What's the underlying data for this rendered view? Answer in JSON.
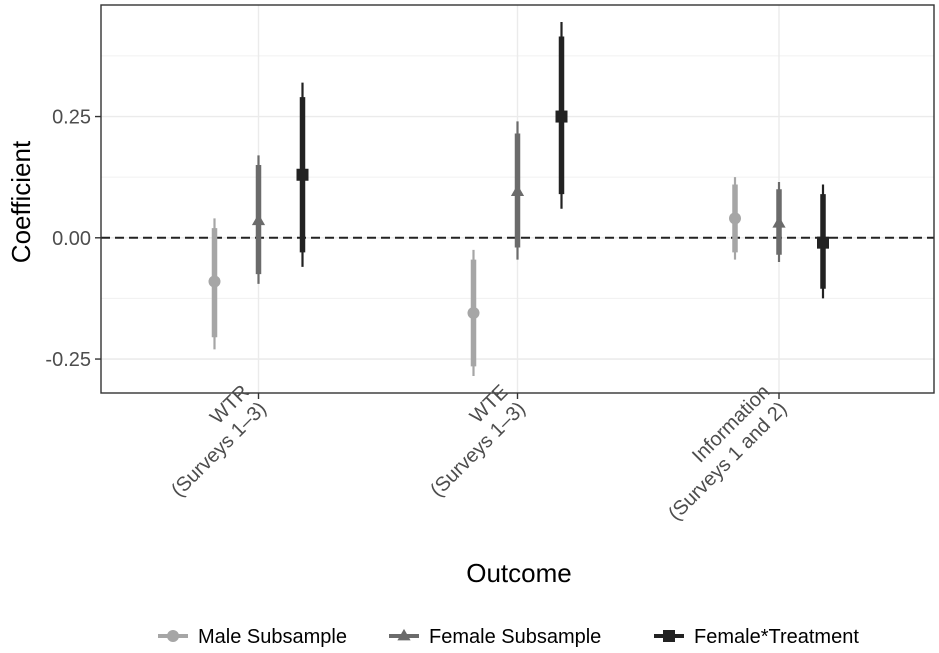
{
  "chart_data": {
    "type": "scatter",
    "subtype": "coefficient-plot",
    "xlabel": "Outcome",
    "ylabel": "Coefficient",
    "ylim": [
      -0.32,
      0.48
    ],
    "yticks": [
      -0.25,
      0.0,
      0.25
    ],
    "ytick_labels": [
      "-0.25",
      "0.00",
      "0.25"
    ],
    "categories": [
      [
        "WTR",
        "(Surveys 1–3)"
      ],
      [
        "WTE",
        "(Surveys 1–3)"
      ],
      [
        "Information",
        "(Surveys 1 and 2)"
      ]
    ],
    "reference_line": 0,
    "grid": true,
    "legend_position": "bottom",
    "series": [
      {
        "name": "Male Subsample",
        "marker": "circle",
        "color": "#a6a6a6",
        "values": [
          -0.09,
          -0.155,
          0.04
        ],
        "ci90": [
          [
            -0.205,
            0.02
          ],
          [
            -0.265,
            -0.045
          ],
          [
            -0.03,
            0.11
          ]
        ],
        "ci95": [
          [
            -0.23,
            0.04
          ],
          [
            -0.285,
            -0.025
          ],
          [
            -0.045,
            0.125
          ]
        ]
      },
      {
        "name": "Female Subsample",
        "marker": "triangle",
        "color": "#6b6b6b",
        "values": [
          0.035,
          0.095,
          0.03
        ],
        "ci90": [
          [
            -0.075,
            0.15
          ],
          [
            -0.02,
            0.215
          ],
          [
            -0.035,
            0.1
          ]
        ],
        "ci95": [
          [
            -0.095,
            0.17
          ],
          [
            -0.045,
            0.24
          ],
          [
            -0.05,
            0.115
          ]
        ]
      },
      {
        "name": "Female*Treatment",
        "marker": "square",
        "color": "#222222",
        "values": [
          0.13,
          0.25,
          -0.01
        ],
        "ci90": [
          [
            -0.03,
            0.29
          ],
          [
            0.09,
            0.415
          ],
          [
            -0.105,
            0.09
          ]
        ],
        "ci95": [
          [
            -0.06,
            0.32
          ],
          [
            0.06,
            0.445
          ],
          [
            -0.125,
            0.11
          ]
        ]
      }
    ]
  }
}
